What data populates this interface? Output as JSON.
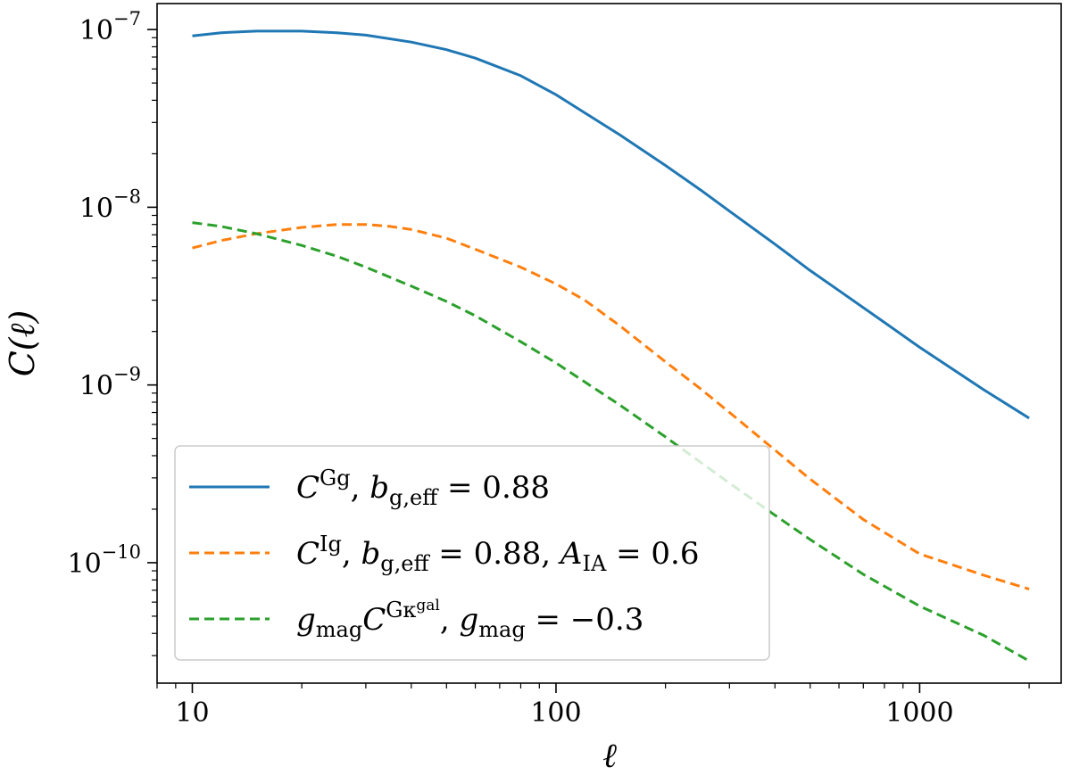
{
  "chart_data": {
    "type": "line",
    "xscale": "log",
    "yscale": "log",
    "xlabel": "ℓ",
    "ylabel": "C(ℓ)",
    "xlim": [
      8,
      2450
    ],
    "ylim": [
      2.1e-11,
      1.4e-07
    ],
    "x_ticks": [
      {
        "value": 10,
        "label": "10"
      },
      {
        "value": 100,
        "label": "100"
      },
      {
        "value": 1000,
        "label": "1000"
      }
    ],
    "y_ticks": [
      {
        "value": 1e-07,
        "base": "10",
        "exp": "−7"
      },
      {
        "value": 1e-08,
        "base": "10",
        "exp": "−8"
      },
      {
        "value": 1e-09,
        "base": "10",
        "exp": "−9"
      },
      {
        "value": 1e-10,
        "base": "10",
        "exp": "−10"
      }
    ],
    "series": [
      {
        "name": "C^Gg, b_g,eff = 0.88",
        "color": "#1f77b4",
        "dash": "solid",
        "points": [
          [
            10,
            9.2e-08
          ],
          [
            12,
            9.6e-08
          ],
          [
            15,
            9.8e-08
          ],
          [
            20,
            9.8e-08
          ],
          [
            25,
            9.6e-08
          ],
          [
            30,
            9.3e-08
          ],
          [
            40,
            8.5e-08
          ],
          [
            50,
            7.7e-08
          ],
          [
            60,
            6.9e-08
          ],
          [
            80,
            5.5e-08
          ],
          [
            100,
            4.3e-08
          ],
          [
            120,
            3.4e-08
          ],
          [
            150,
            2.55e-08
          ],
          [
            200,
            1.72e-08
          ],
          [
            250,
            1.25e-08
          ],
          [
            300,
            9.5e-09
          ],
          [
            400,
            6.2e-09
          ],
          [
            500,
            4.4e-09
          ],
          [
            600,
            3.4e-09
          ],
          [
            800,
            2.25e-09
          ],
          [
            1000,
            1.63e-09
          ],
          [
            1500,
            9.4e-10
          ],
          [
            2000,
            6.5e-10
          ]
        ]
      },
      {
        "name": "C^Ig, b_g,eff = 0.88, A_IA = 0.6",
        "color": "#ff7f0e",
        "dash": "dashed",
        "points": [
          [
            10,
            5.9e-09
          ],
          [
            12,
            6.5e-09
          ],
          [
            15,
            7.1e-09
          ],
          [
            20,
            7.7e-09
          ],
          [
            25,
            8e-09
          ],
          [
            30,
            8e-09
          ],
          [
            35,
            7.8e-09
          ],
          [
            40,
            7.5e-09
          ],
          [
            50,
            6.7e-09
          ],
          [
            60,
            5.8e-09
          ],
          [
            80,
            4.6e-09
          ],
          [
            100,
            3.7e-09
          ],
          [
            120,
            3e-09
          ],
          [
            150,
            2.15e-09
          ],
          [
            200,
            1.35e-09
          ],
          [
            250,
            9.5e-10
          ],
          [
            300,
            7e-10
          ],
          [
            400,
            4.3e-10
          ],
          [
            500,
            2.95e-10
          ],
          [
            700,
            1.75e-10
          ],
          [
            1000,
            1.12e-10
          ],
          [
            1500,
            8.5e-11
          ],
          [
            2000,
            7.1e-11
          ]
        ]
      },
      {
        "name": "g_mag C^Gκgal, g_mag = −0.3",
        "color": "#2ca02c",
        "dash": "dashed",
        "points": [
          [
            10,
            8.2e-09
          ],
          [
            12,
            7.8e-09
          ],
          [
            15,
            7.1e-09
          ],
          [
            20,
            6.1e-09
          ],
          [
            25,
            5.3e-09
          ],
          [
            30,
            4.6e-09
          ],
          [
            40,
            3.6e-09
          ],
          [
            50,
            2.95e-09
          ],
          [
            60,
            2.45e-09
          ],
          [
            80,
            1.75e-09
          ],
          [
            100,
            1.33e-09
          ],
          [
            150,
            7.7e-10
          ],
          [
            200,
            5.1e-10
          ],
          [
            300,
            2.8e-10
          ],
          [
            400,
            1.85e-10
          ],
          [
            500,
            1.35e-10
          ],
          [
            700,
            8.6e-11
          ],
          [
            1000,
            5.7e-11
          ],
          [
            1500,
            3.9e-11
          ],
          [
            2000,
            2.8e-11
          ]
        ]
      }
    ],
    "legend": {
      "placement": "lower-left",
      "entries": [
        {
          "sym": "C",
          "sup": "Gg",
          "rest1": ", ",
          "sym2": "b",
          "sub2": "g,eff",
          "rest2": " = 0.88",
          "sym3": "",
          "sub3": "",
          "rest3": ""
        },
        {
          "sym": "C",
          "sup": "Ig",
          "rest1": ", ",
          "sym2": "b",
          "sub2": "g,eff",
          "rest2": " = 0.88, ",
          "sym3": "A",
          "sub3": "IA",
          "rest3": " = 0.6"
        },
        {
          "pre_sym": "g",
          "pre_sub": "mag",
          "sym": "C",
          "sup": "Gκ",
          "supsup": "gal",
          "rest1": ", ",
          "sym2": "g",
          "sub2": "mag",
          "rest2": " = −0.3",
          "sym3": "",
          "sub3": "",
          "rest3": ""
        }
      ]
    }
  }
}
